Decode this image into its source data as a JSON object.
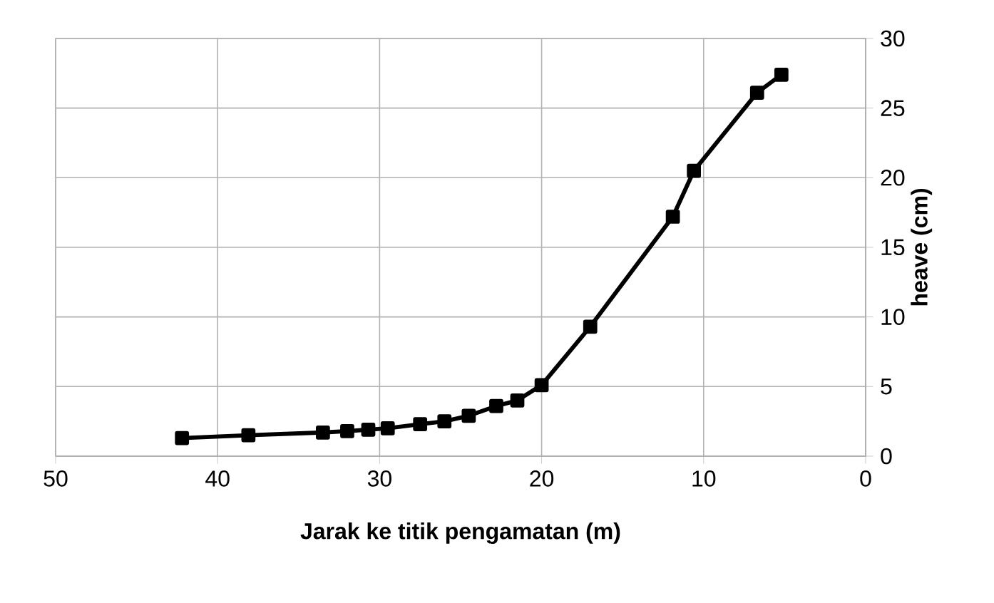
{
  "chart_data": {
    "type": "line",
    "xlabel": "Jarak ke titik pengamatan (m)",
    "ylabel": "heave (cm)",
    "x": [
      42.2,
      38.1,
      33.5,
      32.0,
      30.7,
      29.5,
      27.5,
      26.0,
      24.5,
      22.8,
      21.5,
      20.0,
      17.0,
      11.9,
      10.6,
      6.7,
      5.2
    ],
    "series": [
      {
        "color": "#000000",
        "values": [
          1.3,
          1.5,
          1.7,
          1.8,
          1.9,
          2.0,
          2.3,
          2.5,
          2.9,
          3.6,
          4.0,
          5.1,
          9.3,
          17.2,
          20.5,
          26.1,
          27.4
        ]
      }
    ],
    "xlim": [
      50,
      0
    ],
    "ylim": [
      0,
      30
    ],
    "xticks": [
      50,
      40,
      30,
      20,
      10,
      0
    ],
    "yticks": [
      0,
      5,
      10,
      15,
      20,
      25,
      30
    ],
    "grid": true,
    "marker": "square",
    "line_style": "solid"
  }
}
